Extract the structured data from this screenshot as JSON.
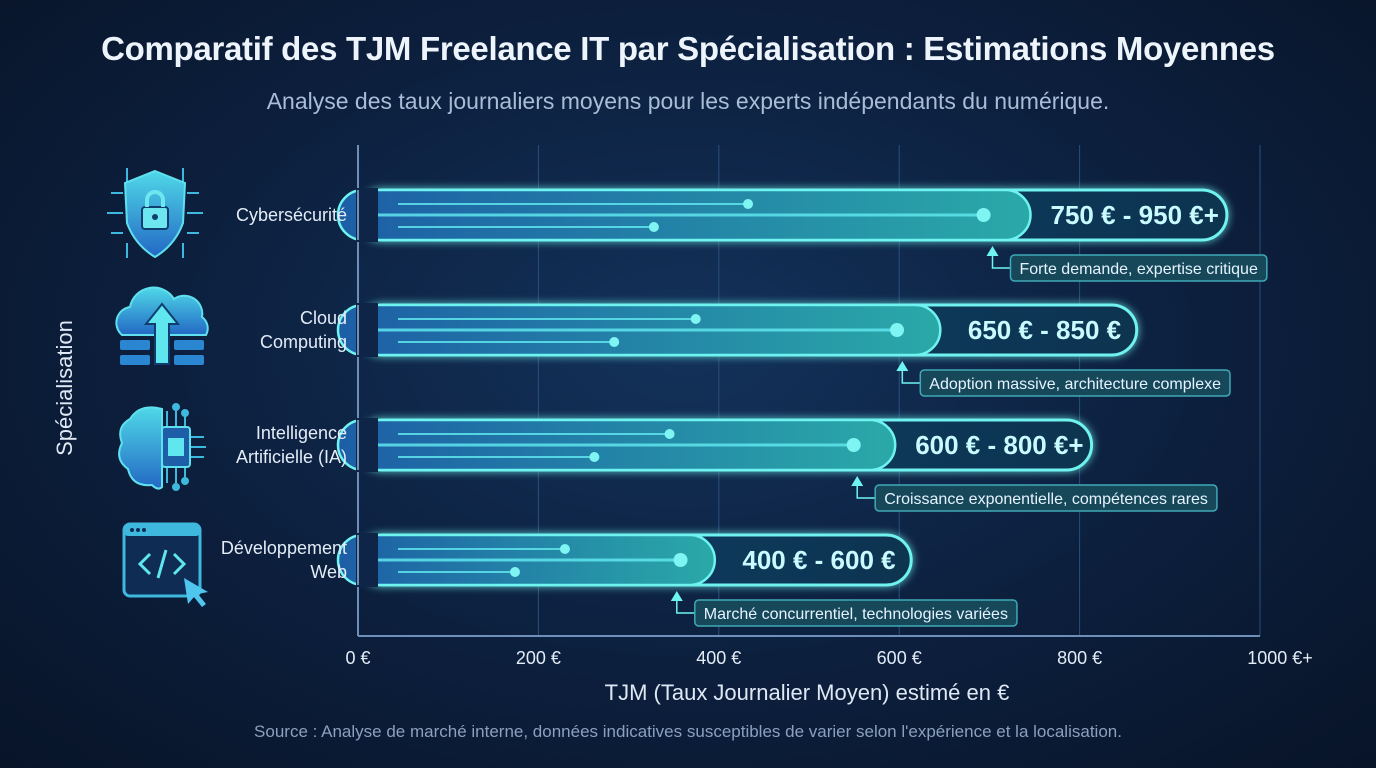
{
  "title": "Comparatif des TJM Freelance IT par Spécialisation : Estimations Moyennes",
  "subtitle": "Analyse des taux journaliers moyens pour les experts indépendants du numérique.",
  "source": "Source : Analyse de marché interne, données indicatives susceptibles de varier selon l'expérience et la localisation.",
  "colors": {
    "bar_start": "#1f6fb8",
    "bar_end": "#2fb3b0",
    "glow": "#6ff3f0",
    "note_bg": "#16485a"
  },
  "chart_data": {
    "type": "bar",
    "orientation": "horizontal",
    "title": "Comparatif des TJM Freelance IT par Spécialisation : Estimations Moyennes",
    "xlabel": "TJM (Taux Journalier Moyen) estimé en €",
    "ylabel": "Spécialisation",
    "xlim": [
      0,
      1000
    ],
    "x_ticks": [
      0,
      200,
      400,
      600,
      800,
      1000
    ],
    "x_tick_labels": [
      "0 €",
      "200 €",
      "400 €",
      "600 €",
      "800 €",
      "1000 €+"
    ],
    "grid": true,
    "categories": [
      {
        "name": [
          "Cybersécurité"
        ],
        "icon": "shield-lock-icon",
        "min": 750,
        "max": 950,
        "label": "750 € - 950 €+",
        "note": "Forte demande, expertise critique"
      },
      {
        "name": [
          "Cloud",
          "Computing"
        ],
        "icon": "cloud-upload-icon",
        "min": 650,
        "max": 850,
        "label": "650 € - 850 €",
        "note": "Adoption massive, architecture complexe"
      },
      {
        "name": [
          "Intelligence",
          "Artificielle (IA)"
        ],
        "icon": "brain-chip-icon",
        "min": 600,
        "max": 800,
        "label": "600 € - 800 €+",
        "note": "Croissance exponentielle, compétences rares"
      },
      {
        "name": [
          "Développement",
          "Web"
        ],
        "icon": "code-window-icon",
        "min": 400,
        "max": 600,
        "label": "400 € - 600 €",
        "note": "Marché concurrentiel, technologies variées"
      }
    ]
  }
}
